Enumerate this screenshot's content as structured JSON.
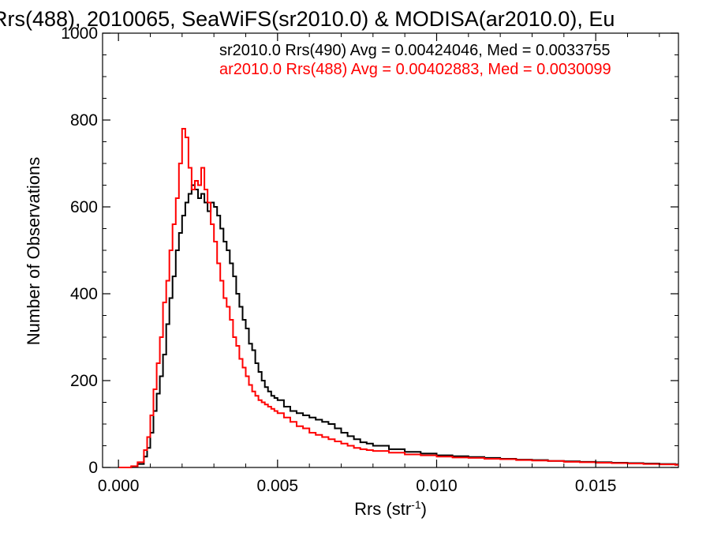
{
  "chart_data": {
    "type": "line",
    "title": "Rrs(488), 2010065, SeaWiFS(sr2010.0) & MODISA(ar2010.0), Eu",
    "xlabel": "Rrs (str",
    "xlabel_sup": "-1",
    "xlabel_close": ")",
    "ylabel": "Number of Observations",
    "xlim": [
      -0.0005,
      0.0176
    ],
    "ylim": [
      0,
      1000
    ],
    "xticks": [
      0.0,
      0.005,
      0.01,
      0.015
    ],
    "xtick_labels": [
      "0.000",
      "0.005",
      "0.010",
      "0.015"
    ],
    "yticks": [
      0,
      200,
      400,
      600,
      800,
      1000
    ],
    "ytick_labels": [
      "0",
      "200",
      "400",
      "600",
      "800",
      "1000"
    ],
    "grid": false,
    "legend_position": "top-right",
    "series": [
      {
        "name": "sr2010.0 Rrs(490) Avg = 0.00424046, Med = 0.0033755",
        "color": "#000000",
        "x": [
          0.0,
          0.0002,
          0.0004,
          0.0006,
          0.0008,
          0.0009,
          0.001,
          0.0011,
          0.0012,
          0.0013,
          0.0014,
          0.0015,
          0.0016,
          0.0017,
          0.0018,
          0.0019,
          0.002,
          0.0021,
          0.0022,
          0.0023,
          0.0024,
          0.0025,
          0.0026,
          0.0027,
          0.0028,
          0.0029,
          0.003,
          0.0031,
          0.0032,
          0.0033,
          0.0034,
          0.0035,
          0.0036,
          0.0037,
          0.0038,
          0.0039,
          0.004,
          0.0041,
          0.0042,
          0.0043,
          0.0044,
          0.0045,
          0.0046,
          0.0047,
          0.0048,
          0.0049,
          0.005,
          0.0052,
          0.0054,
          0.0056,
          0.0058,
          0.006,
          0.0062,
          0.0064,
          0.0066,
          0.0068,
          0.007,
          0.0072,
          0.0074,
          0.0076,
          0.0078,
          0.008,
          0.0085,
          0.009,
          0.0095,
          0.01,
          0.0105,
          0.011,
          0.0115,
          0.012,
          0.0125,
          0.013,
          0.0135,
          0.014,
          0.0145,
          0.015,
          0.0155,
          0.016,
          0.0165,
          0.017,
          0.0175
        ],
        "values": [
          0,
          0,
          2,
          8,
          25,
          45,
          80,
          130,
          170,
          210,
          260,
          330,
          390,
          440,
          500,
          540,
          580,
          610,
          630,
          650,
          640,
          620,
          630,
          610,
          590,
          610,
          600,
          580,
          550,
          520,
          500,
          470,
          440,
          400,
          370,
          340,
          320,
          285,
          270,
          240,
          220,
          200,
          185,
          175,
          165,
          160,
          155,
          140,
          130,
          125,
          120,
          115,
          110,
          105,
          100,
          90,
          80,
          72,
          65,
          58,
          55,
          50,
          42,
          36,
          32,
          28,
          26,
          24,
          22,
          20,
          18,
          17,
          15,
          14,
          13,
          12,
          11,
          10,
          9,
          8,
          7
        ]
      },
      {
        "name": "ar2010.0 Rrs(488) Avg = 0.00402883, Med = 0.0030099",
        "color": "#ff0000",
        "x": [
          0.0,
          0.0002,
          0.0004,
          0.0006,
          0.0008,
          0.0009,
          0.001,
          0.0011,
          0.0012,
          0.0013,
          0.0014,
          0.0015,
          0.0016,
          0.0017,
          0.0018,
          0.0019,
          0.002,
          0.0021,
          0.0022,
          0.0023,
          0.0024,
          0.0025,
          0.0026,
          0.0027,
          0.0028,
          0.0029,
          0.003,
          0.0031,
          0.0032,
          0.0033,
          0.0034,
          0.0035,
          0.0036,
          0.0037,
          0.0038,
          0.0039,
          0.004,
          0.0041,
          0.0042,
          0.0043,
          0.0044,
          0.0045,
          0.0046,
          0.0047,
          0.0048,
          0.0049,
          0.005,
          0.0052,
          0.0054,
          0.0056,
          0.0058,
          0.006,
          0.0062,
          0.0064,
          0.0066,
          0.0068,
          0.007,
          0.0072,
          0.0074,
          0.0076,
          0.0078,
          0.008,
          0.0085,
          0.009,
          0.0095,
          0.01,
          0.0105,
          0.011,
          0.0115,
          0.012,
          0.0125,
          0.013,
          0.0135,
          0.014,
          0.0145,
          0.015,
          0.0155,
          0.016,
          0.0165,
          0.017,
          0.0175
        ],
        "values": [
          0,
          0,
          3,
          12,
          40,
          70,
          120,
          180,
          240,
          300,
          380,
          430,
          500,
          560,
          620,
          700,
          780,
          760,
          690,
          640,
          660,
          650,
          690,
          640,
          610,
          560,
          520,
          470,
          430,
          390,
          370,
          340,
          300,
          280,
          250,
          230,
          210,
          190,
          175,
          165,
          155,
          150,
          145,
          140,
          135,
          130,
          125,
          115,
          105,
          95,
          90,
          80,
          75,
          70,
          65,
          60,
          55,
          50,
          45,
          42,
          40,
          38,
          34,
          30,
          28,
          25,
          23,
          22,
          20,
          19,
          17,
          16,
          15,
          13,
          12,
          11,
          10,
          9,
          8,
          7,
          6
        ]
      }
    ]
  }
}
